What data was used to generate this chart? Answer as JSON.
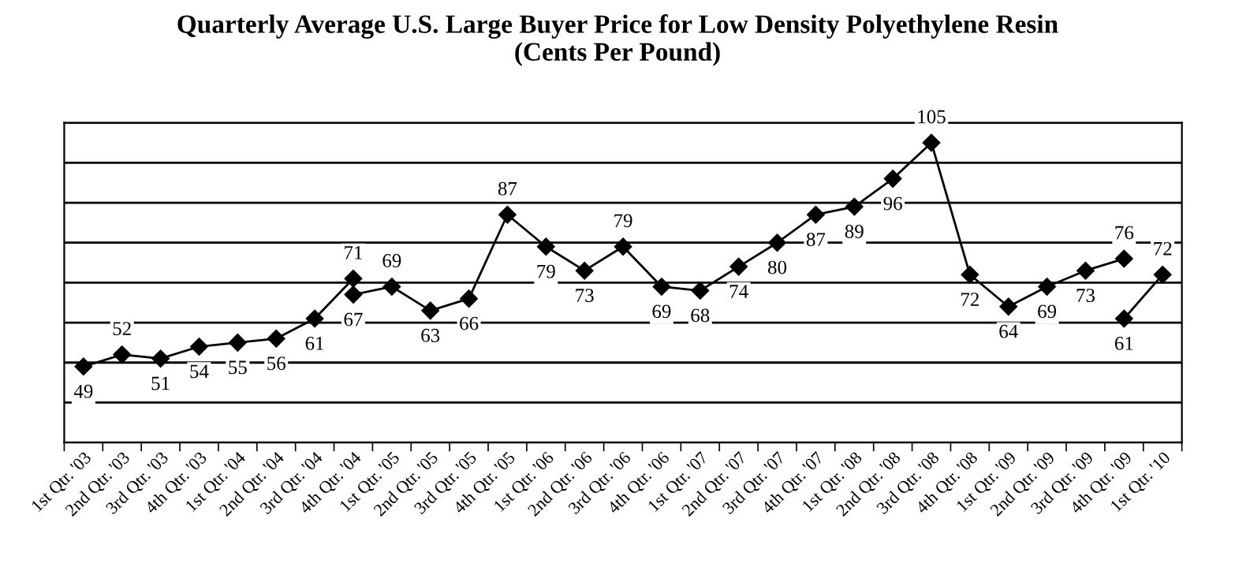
{
  "chart_data": {
    "type": "line",
    "title": "Quarterly Average U.S. Large Buyer Price for Low Density Polyethylene Resin\n(Cents Per Pound)",
    "categories": [
      "1st Qtr. '03",
      "2nd Qtr. '03",
      "3rd Qtr. '03",
      "4th Qtr. '03",
      "1st Qtr. '04",
      "2nd Qtr. '04",
      "3rd Qtr. '04",
      "4th Qtr. '04",
      "1st Qtr. '05",
      "2nd Qtr. '05",
      "3rd Qtr. '05",
      "4th Qtr. '05",
      "1st Qtr. '06",
      "2nd Qtr. '06",
      "3rd Qtr. '06",
      "4th Qtr. '06",
      "1st Qtr. '07",
      "2nd Qtr. '07",
      "3rd Qtr. '07",
      "4th Qtr. '07",
      "1st Qtr. '08",
      "2nd Qtr. '08",
      "3rd Qtr. '08",
      "4th Qtr. '08",
      "1st Qtr. '09",
      "2nd Qtr. '09",
      "3rd Qtr. '09",
      "4th Qtr. '09",
      "1st Qtr. '10"
    ],
    "series": [
      {
        "color": "#000000",
        "values": [
          49,
          52,
          51,
          54,
          55,
          56,
          61,
          71,
          null,
          null,
          null,
          null,
          null,
          null,
          null,
          null,
          null,
          null,
          null,
          null,
          null,
          null,
          null,
          null,
          null,
          null,
          null,
          null,
          null
        ]
      },
      {
        "color": "#000000",
        "values": [
          null,
          null,
          null,
          null,
          null,
          null,
          null,
          67,
          69,
          63,
          66,
          87,
          79,
          73,
          79,
          69,
          68,
          74,
          80,
          87,
          89,
          96,
          105,
          72,
          64,
          69,
          73,
          76,
          null
        ]
      },
      {
        "color": "#000000",
        "values": [
          null,
          null,
          null,
          null,
          null,
          null,
          null,
          null,
          null,
          null,
          null,
          null,
          null,
          null,
          null,
          null,
          null,
          null,
          null,
          null,
          null,
          null,
          null,
          null,
          null,
          null,
          null,
          61,
          72
        ]
      }
    ],
    "ylim": [
      30,
      110
    ],
    "yticks": [
      {
        "value": 30,
        "label": null
      },
      {
        "value": 40,
        "label": null
      },
      {
        "value": 50,
        "label": null
      },
      {
        "value": 60,
        "label": null
      },
      {
        "value": 70,
        "label": null
      },
      {
        "value": 80,
        "label": null
      },
      {
        "value": 90,
        "label": null
      },
      {
        "value": 100,
        "label": null
      },
      {
        "value": 110,
        "label": null
      }
    ],
    "grid": "y",
    "marker": "diamond",
    "line_style": "solid",
    "data_labels": true,
    "tick_labels": "x"
  }
}
